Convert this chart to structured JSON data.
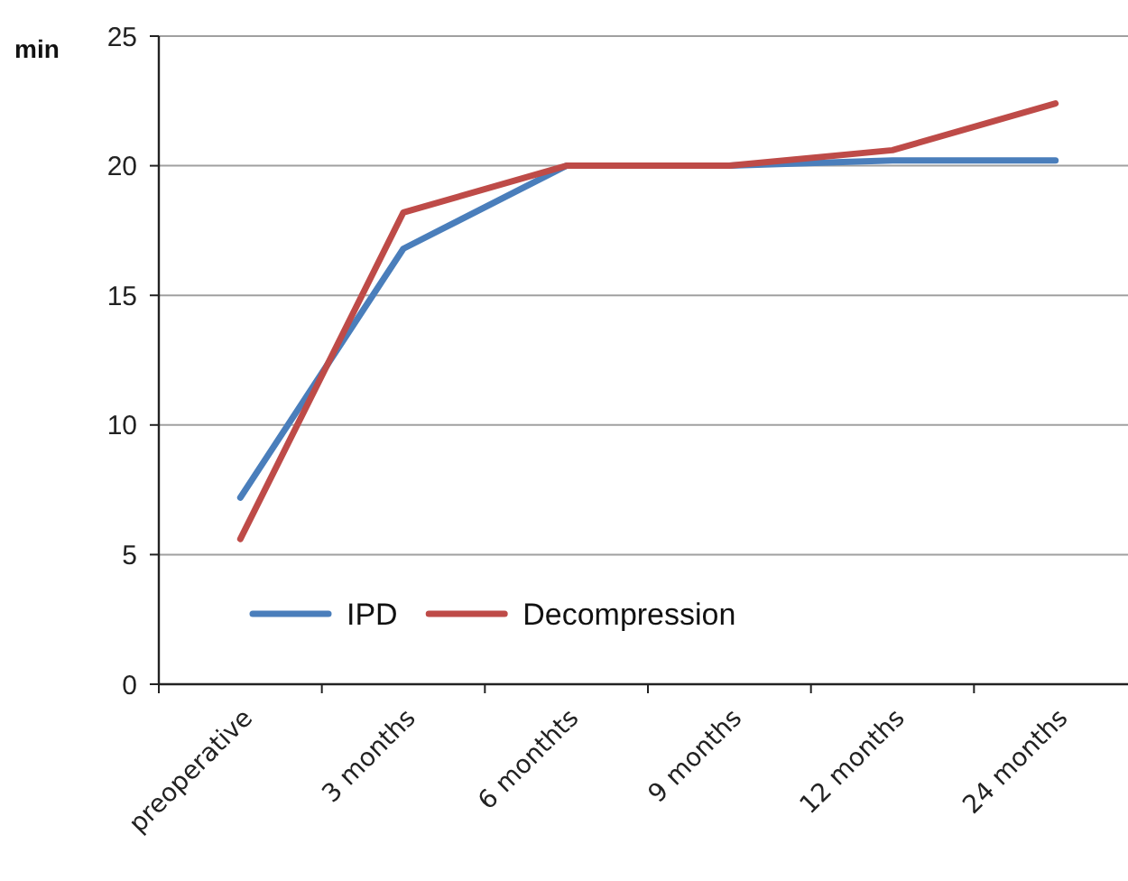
{
  "chart_data": {
    "type": "line",
    "ylabel": "min",
    "categories": [
      "preoperative",
      "3 months",
      "6 monthts",
      "9 months",
      "12 months",
      "24 months"
    ],
    "series": [
      {
        "name": "IPD",
        "color": "#4a7ebb",
        "values": [
          7.2,
          16.8,
          20,
          20,
          20.2,
          20.2
        ]
      },
      {
        "name": "Decompression",
        "color": "#be4b48",
        "values": [
          5.6,
          18.2,
          20,
          20,
          20.6,
          22.4
        ]
      }
    ],
    "ylim": [
      0,
      25
    ],
    "yticks": [
      0,
      5,
      10,
      15,
      20,
      25
    ],
    "grid": "y",
    "legend": "bottom left",
    "marker": "none",
    "line_style": "solid"
  }
}
